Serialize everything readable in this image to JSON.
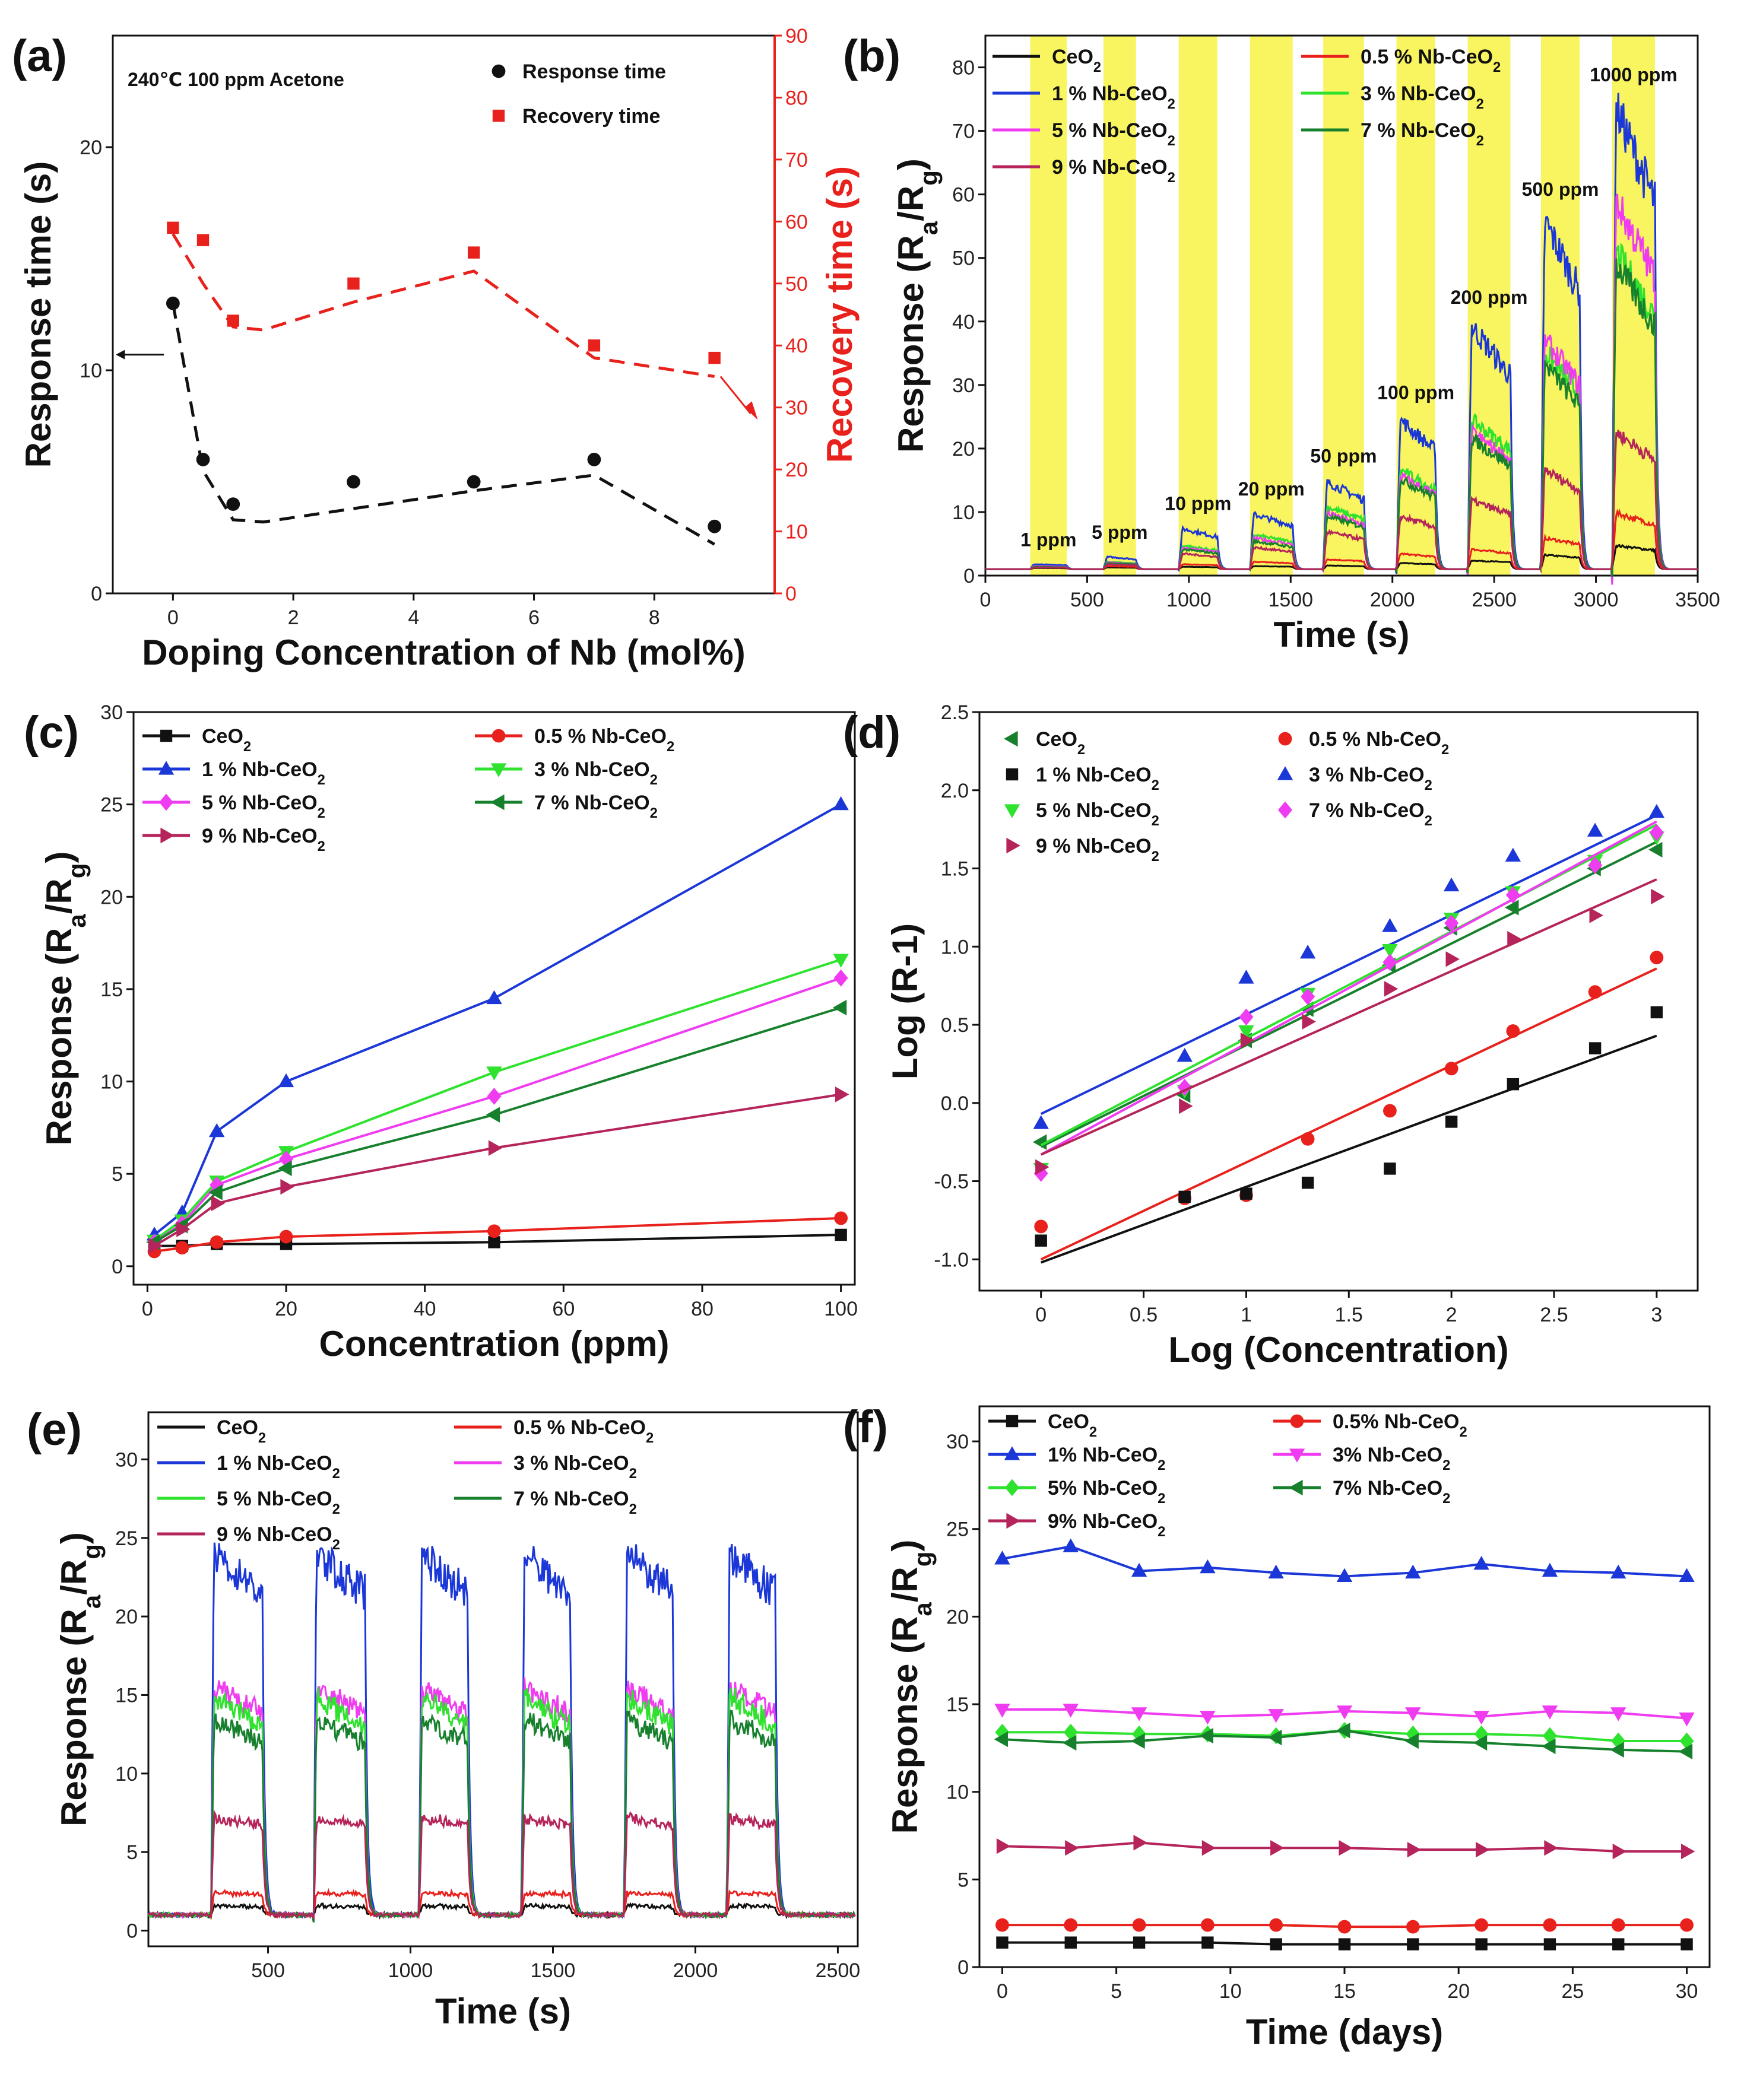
{
  "panels": [
    {
      "label": "(a)",
      "type": "dual-axis-scatter",
      "note": "240℃ 100 ppm Acetone",
      "xlabel": "Doping Concentration of Nb (mol%)",
      "ylabel_left": "Response time  (s)",
      "ylabel_right": "Recovery  time (s)",
      "xlim": [
        -1,
        10
      ],
      "ylim_left": [
        0,
        25
      ],
      "ylim_right": [
        0,
        90
      ],
      "xticks": [
        0,
        2,
        4,
        6,
        8
      ],
      "yticks_left": [
        0,
        10,
        20
      ],
      "yticks_right": [
        0,
        10,
        20,
        30,
        40,
        50,
        60,
        70,
        80,
        90
      ],
      "series": [
        {
          "name": "Response time",
          "color": "#111111",
          "marker": "circle",
          "axis": "left",
          "x": [
            0,
            0.5,
            1,
            3,
            5,
            7,
            9
          ],
          "y": [
            13,
            6,
            4,
            5,
            5,
            6,
            3
          ],
          "trend_x": [
            0,
            0.5,
            1,
            1.5,
            3,
            5,
            7,
            9
          ],
          "trend_y": [
            13,
            5.5,
            3.3,
            3.2,
            3.8,
            4.6,
            5.3,
            2.2
          ]
        },
        {
          "name": "Recovery  time",
          "color": "#e8211c",
          "marker": "square",
          "axis": "right",
          "x": [
            0,
            0.5,
            1,
            3,
            5,
            7,
            9
          ],
          "y": [
            59,
            57,
            44,
            50,
            55,
            40,
            38
          ],
          "trend_x": [
            0,
            0.5,
            1,
            1.5,
            3,
            5,
            7,
            9
          ],
          "trend_y": [
            58,
            50,
            43,
            42.5,
            47,
            52,
            38,
            35
          ]
        }
      ]
    },
    {
      "label": "(b)",
      "type": "line",
      "xlabel": "Time (s)",
      "ylabel": "Response  (Ra/Rg)",
      "xlim": [
        0,
        3500
      ],
      "ylim": [
        0,
        85
      ],
      "xticks": [
        0,
        500,
        1000,
        1500,
        2000,
        2500,
        3000,
        3500
      ],
      "yticks": [
        0,
        10,
        20,
        30,
        40,
        50,
        60,
        70,
        80
      ],
      "highlight_color": "#f8f560",
      "pulses": [
        [
          220,
          400
        ],
        [
          580,
          740
        ],
        [
          950,
          1140
        ],
        [
          1300,
          1510
        ],
        [
          1660,
          1860
        ],
        [
          2020,
          2210
        ],
        [
          2370,
          2580
        ],
        [
          2730,
          2920
        ],
        [
          3080,
          3290
        ]
      ],
      "concentrations": [
        "1 ppm",
        "5 ppm",
        "10 ppm",
        "20 ppm",
        "50 ppm",
        "100 ppm",
        "200 ppm",
        "500 ppm",
        "1000 ppm"
      ],
      "series": [
        {
          "name": "CeO2",
          "color": "#111111",
          "peaks": [
            1.2,
            1.3,
            1.4,
            1.5,
            1.6,
            2.0,
            2.4,
            3.3,
            4.8
          ]
        },
        {
          "name": "0.5 % Nb-CeO2",
          "color": "#e8211c",
          "peaks": [
            1.3,
            1.5,
            1.8,
            2.2,
            2.6,
            3.5,
            4.2,
            6.0,
            10.0
          ]
        },
        {
          "name": "1 % Nb-CeO2",
          "color": "#1b37d8",
          "peaks": [
            1.8,
            3.0,
            7.5,
            9.8,
            15.0,
            25.0,
            40.0,
            57.0,
            75.0
          ]
        },
        {
          "name": "3 % Nb-CeO2",
          "color": "#2ee22e",
          "peaks": [
            1.5,
            2.2,
            4.8,
            6.5,
            11.0,
            17.0,
            25.0,
            36.0,
            52.0
          ]
        },
        {
          "name": "5 % Nb-CeO2",
          "color": "#f03cf0",
          "peaks": [
            1.5,
            2.1,
            4.5,
            6.0,
            10.0,
            16.0,
            23.0,
            38.0,
            60.0
          ]
        },
        {
          "name": "7 % Nb-CeO2",
          "color": "#17802d",
          "peaks": [
            1.4,
            2.0,
            4.2,
            5.5,
            9.5,
            15.5,
            22.0,
            34.0,
            50.0
          ]
        },
        {
          "name": "9 % Nb-CeO2",
          "color": "#b5245a",
          "peaks": [
            1.3,
            1.8,
            3.5,
            4.5,
            7.0,
            9.5,
            12.0,
            17.0,
            23.0
          ]
        }
      ]
    },
    {
      "label": "(c)",
      "type": "line",
      "xlabel": "Concentration  (ppm)",
      "ylabel": "Response  (Ra/Rg)",
      "xlim": [
        -2,
        102
      ],
      "ylim": [
        -1,
        30
      ],
      "xticks": [
        0,
        20,
        40,
        60,
        80,
        100
      ],
      "yticks": [
        0,
        5,
        10,
        15,
        20,
        25,
        30
      ],
      "x": [
        1,
        5,
        10,
        20,
        50,
        100
      ],
      "series": [
        {
          "name": "CeO2",
          "color": "#111111",
          "marker": "square",
          "values": [
            1.1,
            1.1,
            1.2,
            1.2,
            1.3,
            1.7
          ]
        },
        {
          "name": "0.5 % Nb-CeO2",
          "color": "#e8211c",
          "marker": "circle",
          "values": [
            0.8,
            1.0,
            1.3,
            1.6,
            1.9,
            2.6
          ]
        },
        {
          "name": "1 % Nb-CeO2",
          "color": "#1b37d8",
          "marker": "triangle-up",
          "values": [
            1.7,
            2.9,
            7.3,
            10.0,
            14.5,
            25.0
          ]
        },
        {
          "name": "3 % Nb-CeO2",
          "color": "#2ee22e",
          "marker": "triangle-down",
          "values": [
            1.4,
            2.5,
            4.6,
            6.2,
            10.5,
            16.6
          ]
        },
        {
          "name": "5 % Nb-CeO2",
          "color": "#f03cf0",
          "marker": "diamond",
          "values": [
            1.3,
            2.3,
            4.4,
            5.8,
            9.2,
            15.6
          ]
        },
        {
          "name": "7 % Nb-CeO2",
          "color": "#17802d",
          "marker": "triangle-left",
          "values": [
            1.3,
            2.2,
            4.0,
            5.3,
            8.2,
            14.0
          ]
        },
        {
          "name": "9 % Nb-CeO2",
          "color": "#b5245a",
          "marker": "triangle-right",
          "values": [
            1.1,
            2.0,
            3.4,
            4.3,
            6.4,
            9.3
          ]
        }
      ]
    },
    {
      "label": "(d)",
      "type": "scatter-fit",
      "xlabel": "Log  (Concentration)",
      "ylabel": "Log  (R-1)",
      "xlim": [
        -0.3,
        3.2
      ],
      "ylim": [
        -1.2,
        2.5
      ],
      "xticks": [
        0.0,
        0.5,
        1.0,
        1.5,
        2.0,
        2.5,
        3.0
      ],
      "yticks": [
        -1.0,
        -0.5,
        0.0,
        0.5,
        1.0,
        1.5,
        2.0,
        2.5
      ],
      "x": [
        0,
        0.7,
        1.0,
        1.3,
        1.7,
        2.0,
        2.3,
        2.7,
        3.0
      ],
      "series": [
        {
          "name": "CeO2",
          "color": "#17802d",
          "marker": "triangle-left",
          "values": [
            -0.25,
            0.05,
            0.4,
            0.6,
            0.88,
            1.12,
            1.25,
            1.5,
            1.62
          ],
          "fit": [
            -0.28,
            1.67
          ]
        },
        {
          "name": "0.5 % Nb-CeO2",
          "color": "#e8211c",
          "marker": "circle",
          "values": [
            -0.79,
            -0.61,
            -0.59,
            -0.23,
            -0.05,
            0.22,
            0.46,
            0.71,
            0.93
          ],
          "fit": [
            -1.0,
            0.86
          ]
        },
        {
          "name": "1 % Nb-CeO2",
          "color": "#111111",
          "marker": "square",
          "values": [
            -0.88,
            -0.6,
            -0.58,
            -0.51,
            -0.42,
            -0.12,
            0.12,
            0.35,
            0.58
          ],
          "fit": [
            -1.02,
            0.43
          ]
        },
        {
          "name": "3 % Nb-CeO2",
          "color": "#1b37d8",
          "marker": "triangle-up",
          "values": [
            -0.13,
            0.3,
            0.8,
            0.96,
            1.13,
            1.39,
            1.58,
            1.74,
            1.86
          ],
          "fit": [
            -0.07,
            1.84
          ]
        },
        {
          "name": "5 % Nb-CeO2",
          "color": "#2ee22e",
          "marker": "triangle-down",
          "values": [
            -0.42,
            0.08,
            0.46,
            0.7,
            0.98,
            1.18,
            1.35,
            1.55,
            1.7
          ],
          "fit": [
            -0.27,
            1.78
          ]
        },
        {
          "name": "7 % Nb-CeO2",
          "color": "#f03cf0",
          "marker": "diamond",
          "values": [
            -0.45,
            0.1,
            0.55,
            0.68,
            0.9,
            1.15,
            1.33,
            1.52,
            1.73
          ],
          "fit": [
            -0.33,
            1.8
          ]
        },
        {
          "name": "9 % Nb-CeO2",
          "color": "#b5245a",
          "marker": "triangle-right",
          "values": [
            -0.41,
            -0.02,
            0.4,
            0.52,
            0.73,
            0.92,
            1.05,
            1.2,
            1.32
          ],
          "fit": [
            -0.33,
            1.43
          ]
        }
      ]
    },
    {
      "label": "(e)",
      "type": "line",
      "xlabel": "Time (s)",
      "ylabel": "Response  (Ra/Rg)",
      "xlim": [
        80,
        2570
      ],
      "ylim": [
        -1,
        33
      ],
      "xticks": [
        500,
        1000,
        1500,
        2000,
        2500
      ],
      "yticks": [
        0,
        5,
        10,
        15,
        20,
        25,
        30
      ],
      "pulses": [
        [
          300,
          480
        ],
        [
          660,
          840
        ],
        [
          1030,
          1200
        ],
        [
          1390,
          1560
        ],
        [
          1750,
          1920
        ],
        [
          2110,
          2280
        ]
      ],
      "series": [
        {
          "name": "CeO2",
          "color": "#111111",
          "peak": 1.6,
          "end": 1.5
        },
        {
          "name": "0.5 % Nb-CeO2",
          "color": "#e8211c",
          "peak": 2.4,
          "end": 2.3
        },
        {
          "name": "1 % Nb-CeO2",
          "color": "#1b37d8",
          "peak": 24.0,
          "end": 21.5
        },
        {
          "name": "3 % Nb-CeO2",
          "color": "#f03cf0",
          "peak": 15.5,
          "end": 13.8
        },
        {
          "name": "5 % Nb-CeO2",
          "color": "#2ee22e",
          "peak": 15.0,
          "end": 13.0
        },
        {
          "name": "7 % Nb-CeO2",
          "color": "#17802d",
          "peak": 13.5,
          "end": 12.0
        },
        {
          "name": "9 % Nb-CeO2",
          "color": "#b5245a",
          "peak": 7.2,
          "end": 6.7
        }
      ]
    },
    {
      "label": "(f)",
      "type": "line",
      "xlabel": "Time  (days)",
      "ylabel": "Response  (Ra/Rg)",
      "xlim": [
        -1,
        31
      ],
      "ylim": [
        0,
        32
      ],
      "xticks": [
        0,
        5,
        10,
        15,
        20,
        25,
        30
      ],
      "yticks": [
        0,
        5,
        10,
        15,
        20,
        25,
        30
      ],
      "x": [
        0,
        3,
        6,
        9,
        12,
        15,
        18,
        21,
        24,
        27,
        30
      ],
      "series": [
        {
          "name": "CeO2",
          "color": "#111111",
          "marker": "square",
          "values": [
            1.4,
            1.4,
            1.4,
            1.4,
            1.3,
            1.3,
            1.3,
            1.3,
            1.3,
            1.3,
            1.3
          ]
        },
        {
          "name": "0.5% Nb-CeO2",
          "color": "#e8211c",
          "marker": "circle",
          "values": [
            2.4,
            2.4,
            2.4,
            2.4,
            2.4,
            2.3,
            2.3,
            2.4,
            2.4,
            2.4,
            2.4
          ]
        },
        {
          "name": "1% Nb-CeO2",
          "color": "#1b37d8",
          "marker": "triangle-up",
          "values": [
            23.3,
            24.0,
            22.6,
            22.8,
            22.5,
            22.3,
            22.5,
            23.0,
            22.6,
            22.5,
            22.3
          ]
        },
        {
          "name": "3% Nb-CeO2",
          "color": "#f03cf0",
          "marker": "triangle-down",
          "values": [
            14.7,
            14.7,
            14.5,
            14.3,
            14.4,
            14.6,
            14.5,
            14.3,
            14.6,
            14.5,
            14.2
          ]
        },
        {
          "name": "5% Nb-CeO2",
          "color": "#2ee22e",
          "marker": "diamond",
          "values": [
            13.4,
            13.4,
            13.3,
            13.3,
            13.2,
            13.5,
            13.3,
            13.3,
            13.2,
            12.9,
            12.9
          ]
        },
        {
          "name": "7% Nb-CeO2",
          "color": "#17802d",
          "marker": "triangle-left",
          "values": [
            13.0,
            12.8,
            12.9,
            13.2,
            13.1,
            13.5,
            12.9,
            12.8,
            12.6,
            12.4,
            12.3
          ]
        },
        {
          "name": "9% Nb-CeO2",
          "color": "#b5245a",
          "marker": "triangle-right",
          "values": [
            6.9,
            6.8,
            7.1,
            6.8,
            6.8,
            6.8,
            6.7,
            6.7,
            6.8,
            6.6,
            6.6
          ]
        }
      ]
    }
  ]
}
